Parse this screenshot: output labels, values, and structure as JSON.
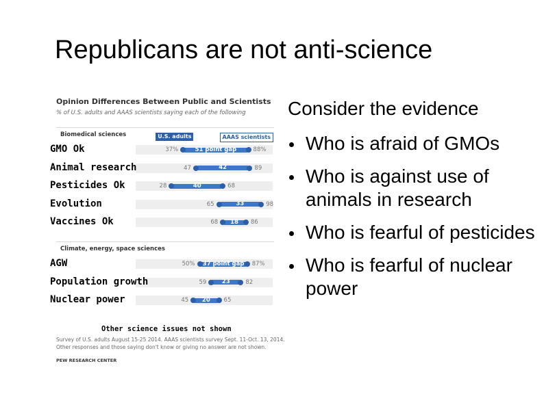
{
  "slide": {
    "title": "Republicans are not anti-science"
  },
  "chart_data": {
    "type": "dumbbell",
    "title": "Opinion Differences Between Public and Scientists",
    "subtitle": "% of U.S. adults and AAAS scientists saying each of the following",
    "xlim": [
      0,
      100
    ],
    "series": [
      {
        "name": "U.S. adults"
      },
      {
        "name": "AAAS scientists"
      }
    ],
    "sections": [
      {
        "label": "Biomedical sciences",
        "rows": [
          {
            "label": "GMO Ok",
            "public": 37,
            "scientists": 88,
            "public_text": "37%",
            "scientists_text": "88%",
            "gap_text": "51 point gap"
          },
          {
            "label": "Animal research",
            "public": 47,
            "scientists": 89,
            "public_text": "47",
            "scientists_text": "89",
            "gap_text": "42"
          },
          {
            "label": "Pesticides Ok",
            "public": 28,
            "scientists": 68,
            "public_text": "28",
            "scientists_text": "68",
            "gap_text": "40"
          },
          {
            "label": "Evolution",
            "public": 65,
            "scientists": 98,
            "public_text": "65",
            "scientists_text": "98",
            "gap_text": "33"
          },
          {
            "label": "Vaccines Ok",
            "public": 68,
            "scientists": 86,
            "public_text": "68",
            "scientists_text": "86",
            "gap_text": "18"
          }
        ]
      },
      {
        "label": "Climate, energy, space sciences",
        "rows": [
          {
            "label": "AGW",
            "public": 50,
            "scientists": 87,
            "public_text": "50%",
            "scientists_text": "87%",
            "gap_text": "37 point gap"
          },
          {
            "label": "Population growth",
            "public": 59,
            "scientists": 82,
            "public_text": "59",
            "scientists_text": "82",
            "gap_text": "23"
          },
          {
            "label": "Nuclear power",
            "public": 45,
            "scientists": 65,
            "public_text": "45",
            "scientists_text": "65",
            "gap_text": "20"
          }
        ]
      }
    ],
    "other_issues": "Other science issues not shown",
    "note_lines": [
      "Survey of U.S. adults August 15-25 2014. AAAS scientists survey Sept. 11-Oct. 13, 2014.",
      "Other responses and those saying don't know or giving no answer are not shown."
    ],
    "source": "PEW RESEARCH CENTER"
  },
  "evidence": {
    "heading": "Consider the evidence",
    "items": [
      "Who is afraid of GMOs",
      "Who is against use of animals in research",
      "Who is fearful of pesticides",
      "Who is fearful of nuclear power"
    ]
  },
  "colors": {
    "bar": "#3d77c8",
    "dot": "#2d5ea8",
    "band": "#eeeeee"
  }
}
